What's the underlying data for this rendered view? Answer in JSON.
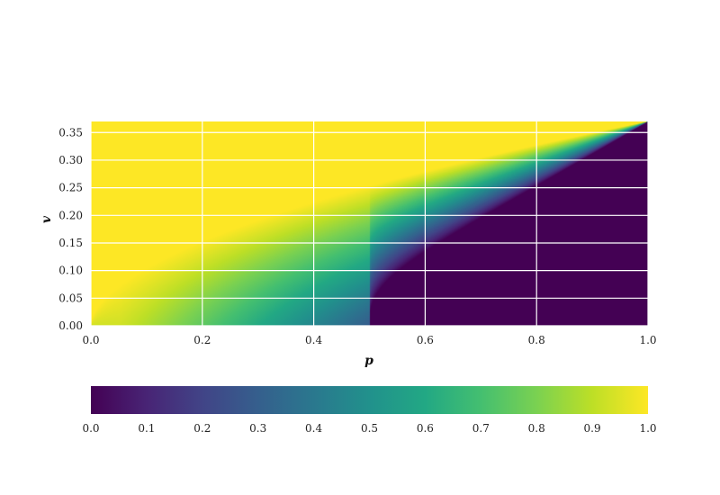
{
  "chart_data": {
    "type": "heatmap",
    "title": "",
    "xlabel": "p",
    "ylabel": "v",
    "xlim": [
      0.0,
      1.0
    ],
    "ylim": [
      0.0,
      0.37
    ],
    "x_ticks": [
      "0.0",
      "0.2",
      "0.4",
      "0.6",
      "0.8",
      "1.0"
    ],
    "y_ticks": [
      "0.00",
      "0.05",
      "0.10",
      "0.15",
      "0.20",
      "0.25",
      "0.30",
      "0.35"
    ],
    "grid": true,
    "colormap": "viridis",
    "color_range": [
      0.0,
      1.0
    ],
    "colorbar": {
      "placement": "bottom",
      "ticks": [
        "0.0",
        "0.1",
        "0.2",
        "0.3",
        "0.4",
        "0.5",
        "0.6",
        "0.7",
        "0.8",
        "0.9",
        "1.0"
      ]
    },
    "boundaries": {
      "description_points": [
        {
          "p": 0.0,
          "upper_v": 0.0,
          "lower_v": 0.0
        },
        {
          "p": 0.2,
          "upper_v": 0.165,
          "lower_v": 0.0
        },
        {
          "p": 0.4,
          "upper_v": 0.25,
          "lower_v": 0.0
        },
        {
          "p": 0.5,
          "upper_v": 0.275,
          "lower_v": 0.0
        },
        {
          "p": 0.6,
          "upper_v": 0.3,
          "lower_v": 0.19
        },
        {
          "p": 0.8,
          "upper_v": 0.34,
          "lower_v": 0.3
        },
        {
          "p": 1.0,
          "upper_v": 0.37,
          "lower_v": 0.37
        }
      ]
    }
  }
}
